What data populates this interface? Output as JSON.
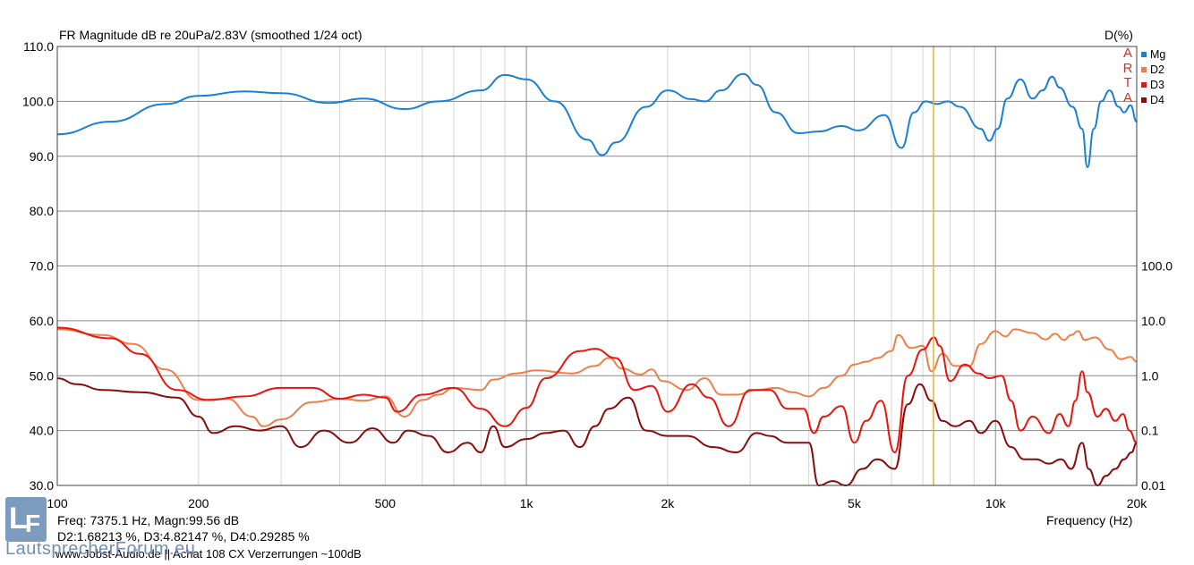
{
  "header": {
    "title": "FR Magnitude dB re 20uPa/2.83V (smoothed 1/24 oct)",
    "right_axis_label": "D(%)"
  },
  "readout": {
    "line1": "Freq: 7375.1 Hz, Magn:99.56 dB",
    "line2": "D2:1.68213 %, D3:4.82147 %, D4:0.29285 %"
  },
  "footer_text": "www.Jobst-Audio.de || Achat 108 CX  Verzerrungen ~100dB",
  "brand": {
    "logo_text_1": "L",
    "logo_text_2": "F",
    "name": "LautsprecherForum.eu"
  },
  "arta": [
    "A",
    "R",
    "T",
    "A"
  ],
  "chart_data": {
    "type": "line",
    "xlabel": "Frequency (Hz)",
    "ylabel": "",
    "x_scale": "log",
    "xlim": [
      100,
      20000
    ],
    "ylim": [
      30,
      110
    ],
    "y2_scale": "log",
    "y2lim": [
      0.01,
      100
    ],
    "grid": true,
    "legend_position": "top-right",
    "cursor_x": 7375.1,
    "x_ticks": [
      {
        "value": 100,
        "label": "100"
      },
      {
        "value": 200,
        "label": "200"
      },
      {
        "value": 500,
        "label": "500"
      },
      {
        "value": 1000,
        "label": "1k"
      },
      {
        "value": 2000,
        "label": "2k"
      },
      {
        "value": 5000,
        "label": "5k"
      },
      {
        "value": 10000,
        "label": "10k"
      },
      {
        "value": 20000,
        "label": "20k"
      }
    ],
    "y_ticks": [
      {
        "value": 110,
        "label": "110.0"
      },
      {
        "value": 100,
        "label": "100.0"
      },
      {
        "value": 90,
        "label": "90.0"
      },
      {
        "value": 80,
        "label": "80.0"
      },
      {
        "value": 70,
        "label": "70.0"
      },
      {
        "value": 60,
        "label": "60.0"
      },
      {
        "value": 50,
        "label": "50.0"
      },
      {
        "value": 40,
        "label": "40.0"
      },
      {
        "value": 30,
        "label": "30.0"
      }
    ],
    "y2_ticks": [
      {
        "value": 100,
        "label": "100.0"
      },
      {
        "value": 10,
        "label": "10.0"
      },
      {
        "value": 1,
        "label": "1.0"
      },
      {
        "value": 0.1,
        "label": "0.1"
      },
      {
        "value": 0.01,
        "label": "0.01"
      }
    ],
    "series": [
      {
        "name": "Mg",
        "color": "#1a7fd6",
        "axis": "left",
        "points": [
          [
            100,
            94
          ],
          [
            130,
            96.3
          ],
          [
            170,
            99.5
          ],
          [
            200,
            101
          ],
          [
            250,
            101.8
          ],
          [
            300,
            101.5
          ],
          [
            380,
            99.7
          ],
          [
            450,
            100.5
          ],
          [
            550,
            98.6
          ],
          [
            650,
            100
          ],
          [
            800,
            102
          ],
          [
            900,
            104.8
          ],
          [
            1000,
            104
          ],
          [
            1150,
            100
          ],
          [
            1350,
            93
          ],
          [
            1450,
            90.2
          ],
          [
            1550,
            92.5
          ],
          [
            1800,
            99
          ],
          [
            2000,
            102
          ],
          [
            2250,
            100.4
          ],
          [
            2400,
            100
          ],
          [
            2600,
            102
          ],
          [
            2900,
            105
          ],
          [
            3100,
            103
          ],
          [
            3400,
            98
          ],
          [
            3800,
            94.2
          ],
          [
            4200,
            94.5
          ],
          [
            4700,
            95.5
          ],
          [
            5100,
            94.7
          ],
          [
            5800,
            97.5
          ],
          [
            6300,
            91.5
          ],
          [
            6700,
            98
          ],
          [
            7100,
            100
          ],
          [
            7500,
            99.5
          ],
          [
            7900,
            100
          ],
          [
            8400,
            99
          ],
          [
            9300,
            95
          ],
          [
            9700,
            92.8
          ],
          [
            10100,
            95
          ],
          [
            10600,
            100.5
          ],
          [
            11300,
            104
          ],
          [
            12000,
            100.5
          ],
          [
            12600,
            102
          ],
          [
            13200,
            104.5
          ],
          [
            13700,
            102.5
          ],
          [
            14600,
            99
          ],
          [
            15300,
            95
          ],
          [
            15700,
            88
          ],
          [
            16200,
            95
          ],
          [
            16800,
            100
          ],
          [
            17500,
            102
          ],
          [
            18300,
            99
          ],
          [
            18800,
            98
          ],
          [
            19400,
            99.3
          ],
          [
            20000,
            96.3
          ]
        ]
      },
      {
        "name": "D2",
        "color": "#ef7f4a",
        "axis": "right",
        "points": [
          [
            100,
            7
          ],
          [
            125,
            5.5
          ],
          [
            145,
            3.8
          ],
          [
            170,
            1.3
          ],
          [
            200,
            0.36
          ],
          [
            230,
            0.38
          ],
          [
            260,
            0.18
          ],
          [
            275,
            0.12
          ],
          [
            300,
            0.16
          ],
          [
            350,
            0.33
          ],
          [
            400,
            0.38
          ],
          [
            450,
            0.35
          ],
          [
            500,
            0.42
          ],
          [
            550,
            0.18
          ],
          [
            600,
            0.36
          ],
          [
            650,
            0.45
          ],
          [
            700,
            0.6
          ],
          [
            800,
            0.55
          ],
          [
            850,
            0.85
          ],
          [
            950,
            1.1
          ],
          [
            1050,
            1.25
          ],
          [
            1250,
            1.1
          ],
          [
            1400,
            1.5
          ],
          [
            1500,
            2.1
          ],
          [
            1600,
            1.35
          ],
          [
            1750,
            1.05
          ],
          [
            1850,
            1.3
          ],
          [
            1950,
            0.8
          ],
          [
            2200,
            0.55
          ],
          [
            2400,
            0.9
          ],
          [
            2600,
            0.45
          ],
          [
            2800,
            0.45
          ],
          [
            3100,
            0.55
          ],
          [
            3400,
            0.6
          ],
          [
            3700,
            0.5
          ],
          [
            4000,
            0.42
          ],
          [
            4300,
            0.6
          ],
          [
            4700,
            1
          ],
          [
            5000,
            1.6
          ],
          [
            5300,
            1.8
          ],
          [
            5600,
            2.1
          ],
          [
            6000,
            2.8
          ],
          [
            6200,
            5.5
          ],
          [
            6600,
            3.2
          ],
          [
            7000,
            3.5
          ],
          [
            7300,
            1.2
          ],
          [
            7700,
            2.5
          ],
          [
            8200,
            1.5
          ],
          [
            8800,
            1.5
          ],
          [
            9300,
            3.8
          ],
          [
            10000,
            6.5
          ],
          [
            10500,
            5.2
          ],
          [
            11000,
            7
          ],
          [
            12000,
            6
          ],
          [
            12800,
            4.6
          ],
          [
            13400,
            5.8
          ],
          [
            14000,
            4.5
          ],
          [
            14500,
            5.5
          ],
          [
            15000,
            6.5
          ],
          [
            15500,
            4.5
          ],
          [
            16300,
            5
          ],
          [
            17500,
            3
          ],
          [
            18500,
            2
          ],
          [
            19400,
            2.2
          ],
          [
            20000,
            1.8
          ]
        ]
      },
      {
        "name": "D3",
        "color": "#e8150f",
        "axis": "right",
        "points": [
          [
            100,
            7.5
          ],
          [
            130,
            4.8
          ],
          [
            150,
            2.5
          ],
          [
            180,
            0.55
          ],
          [
            210,
            0.36
          ],
          [
            250,
            0.42
          ],
          [
            300,
            0.6
          ],
          [
            350,
            0.6
          ],
          [
            400,
            0.38
          ],
          [
            450,
            0.45
          ],
          [
            500,
            0.4
          ],
          [
            530,
            0.22
          ],
          [
            600,
            0.45
          ],
          [
            700,
            0.6
          ],
          [
            800,
            0.25
          ],
          [
            900,
            0.12
          ],
          [
            1000,
            0.26
          ],
          [
            1100,
            0.9
          ],
          [
            1300,
            2.8
          ],
          [
            1400,
            3.1
          ],
          [
            1550,
            2.1
          ],
          [
            1700,
            0.55
          ],
          [
            1850,
            0.65
          ],
          [
            2000,
            0.22
          ],
          [
            2250,
            0.7
          ],
          [
            2450,
            0.4
          ],
          [
            2700,
            0.12
          ],
          [
            3000,
            0.55
          ],
          [
            3300,
            0.55
          ],
          [
            3600,
            0.25
          ],
          [
            3900,
            0.25
          ],
          [
            4100,
            0.09
          ],
          [
            4300,
            0.18
          ],
          [
            4700,
            0.28
          ],
          [
            5000,
            0.06
          ],
          [
            5300,
            0.15
          ],
          [
            5700,
            0.35
          ],
          [
            6100,
            0.04
          ],
          [
            6500,
            1
          ],
          [
            7000,
            3
          ],
          [
            7400,
            5
          ],
          [
            7600,
            3.5
          ],
          [
            8000,
            0.8
          ],
          [
            8600,
            1.6
          ],
          [
            9200,
            1.1
          ],
          [
            9700,
            0.9
          ],
          [
            10300,
            1
          ],
          [
            10800,
            0.35
          ],
          [
            11300,
            0.1
          ],
          [
            12000,
            0.18
          ],
          [
            13000,
            0.09
          ],
          [
            13700,
            0.2
          ],
          [
            14300,
            0.12
          ],
          [
            14800,
            0.35
          ],
          [
            15300,
            1.2
          ],
          [
            15700,
            0.5
          ],
          [
            16500,
            0.18
          ],
          [
            17200,
            0.25
          ],
          [
            18000,
            0.15
          ],
          [
            18700,
            0.2
          ],
          [
            19300,
            0.1
          ],
          [
            20000,
            0.06
          ]
        ]
      },
      {
        "name": "D4",
        "color": "#8b0a0a",
        "axis": "right",
        "points": [
          [
            100,
            0.9
          ],
          [
            110,
            0.7
          ],
          [
            125,
            0.55
          ],
          [
            150,
            0.5
          ],
          [
            180,
            0.4
          ],
          [
            200,
            0.18
          ],
          [
            215,
            0.09
          ],
          [
            240,
            0.12
          ],
          [
            270,
            0.1
          ],
          [
            300,
            0.12
          ],
          [
            330,
            0.05
          ],
          [
            370,
            0.1
          ],
          [
            420,
            0.06
          ],
          [
            470,
            0.11
          ],
          [
            520,
            0.06
          ],
          [
            560,
            0.1
          ],
          [
            620,
            0.08
          ],
          [
            680,
            0.04
          ],
          [
            750,
            0.06
          ],
          [
            800,
            0.04
          ],
          [
            850,
            0.12
          ],
          [
            900,
            0.05
          ],
          [
            1000,
            0.07
          ],
          [
            1100,
            0.09
          ],
          [
            1200,
            0.1
          ],
          [
            1300,
            0.05
          ],
          [
            1400,
            0.12
          ],
          [
            1500,
            0.25
          ],
          [
            1650,
            0.4
          ],
          [
            1800,
            0.1
          ],
          [
            2000,
            0.08
          ],
          [
            2200,
            0.08
          ],
          [
            2500,
            0.05
          ],
          [
            2800,
            0.04
          ],
          [
            3100,
            0.09
          ],
          [
            3300,
            0.08
          ],
          [
            3600,
            0.06
          ],
          [
            4000,
            0.06
          ],
          [
            4200,
            0.008
          ],
          [
            4500,
            0.012
          ],
          [
            4800,
            0.008
          ],
          [
            5200,
            0.02
          ],
          [
            5600,
            0.03
          ],
          [
            6100,
            0.02
          ],
          [
            6500,
            0.3
          ],
          [
            6900,
            0.7
          ],
          [
            7300,
            0.35
          ],
          [
            7700,
            0.15
          ],
          [
            8200,
            0.12
          ],
          [
            8800,
            0.15
          ],
          [
            9300,
            0.09
          ],
          [
            10000,
            0.15
          ],
          [
            10800,
            0.05
          ],
          [
            11500,
            0.03
          ],
          [
            12200,
            0.03
          ],
          [
            13000,
            0.025
          ],
          [
            13800,
            0.03
          ],
          [
            14500,
            0.02
          ],
          [
            15300,
            0.06
          ],
          [
            15800,
            0.02
          ],
          [
            16500,
            0.01
          ],
          [
            17200,
            0.015
          ],
          [
            18000,
            0.02
          ],
          [
            18800,
            0.03
          ],
          [
            19500,
            0.04
          ],
          [
            20000,
            0.06
          ]
        ]
      }
    ]
  }
}
